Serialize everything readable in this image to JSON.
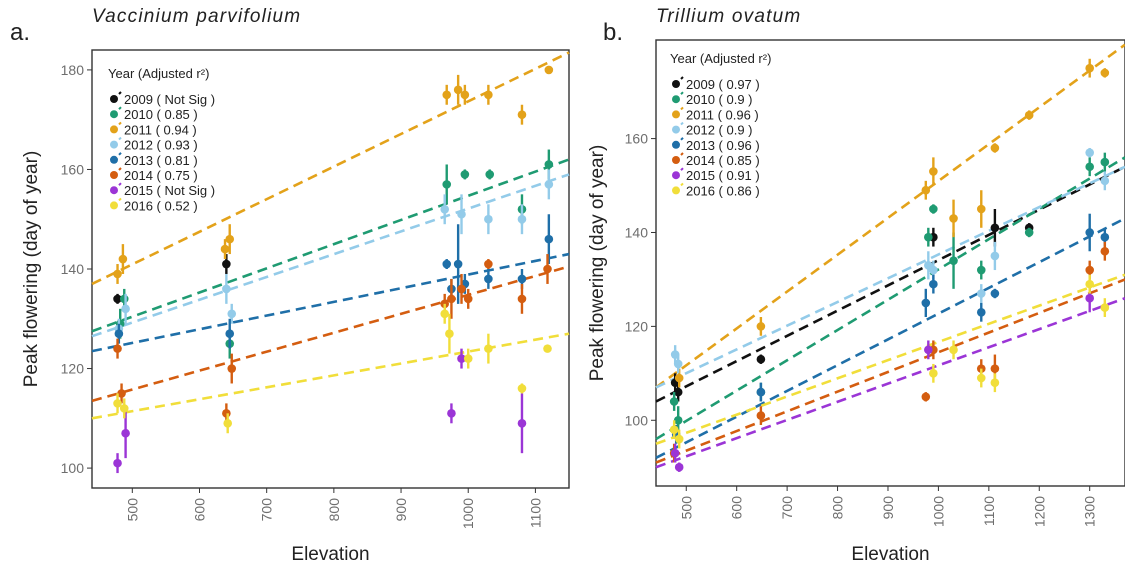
{
  "panels": [
    {
      "letter": "a.",
      "species": "Vaccinium parvifolium"
    },
    {
      "letter": "b.",
      "species": "Trillium ovatum"
    }
  ],
  "colors": {
    "2009": "#111111",
    "2010": "#1f9b72",
    "2011": "#e3a21a",
    "2012": "#93cbe9",
    "2013": "#1f6fa8",
    "2014": "#d45d10",
    "2015": "#9b35d6",
    "2016": "#f1de3a",
    "axis": "#333333",
    "tick": "#6e6e6e"
  },
  "chart_data": [
    {
      "type": "scatter",
      "title": "Vaccinium parvifolium",
      "xlabel": "Elevation",
      "ylabel": "Peak flowering (day of year)",
      "xlim": [
        440,
        1150
      ],
      "ylim": [
        96,
        184
      ],
      "xticks": [
        500,
        600,
        700,
        800,
        900,
        1000,
        1100
      ],
      "yticks": [
        100,
        120,
        140,
        160,
        180
      ],
      "legend": {
        "title": "Year (Adjusted r²)",
        "position": "top-left"
      },
      "series": [
        {
          "year": "2009",
          "label": "2009 ( Not Sig )",
          "fit": null,
          "points": [
            {
              "x": 478,
              "y": 134,
              "e": 1
            },
            {
              "x": 640,
              "y": 141,
              "e": 2
            }
          ]
        },
        {
          "year": "2010",
          "label": "2010 ( 0.85 )",
          "fit": [
            [
              440,
              127.5
            ],
            [
              1150,
              162
            ]
          ],
          "points": [
            {
              "x": 482,
              "y": 129,
              "e": 3
            },
            {
              "x": 488,
              "y": 134,
              "e": 2
            },
            {
              "x": 645,
              "y": 125,
              "e": 3
            },
            {
              "x": 968,
              "y": 157,
              "e": 4
            },
            {
              "x": 995,
              "y": 159,
              "e": 1
            },
            {
              "x": 1032,
              "y": 159,
              "e": 1
            },
            {
              "x": 1080,
              "y": 152,
              "e": 3
            },
            {
              "x": 1120,
              "y": 161,
              "e": 3
            }
          ]
        },
        {
          "year": "2011",
          "label": "2011 ( 0.94 )",
          "fit": [
            [
              440,
              137
            ],
            [
              1150,
              183.5
            ]
          ],
          "points": [
            {
              "x": 478,
              "y": 139,
              "e": 2
            },
            {
              "x": 486,
              "y": 142,
              "e": 3
            },
            {
              "x": 638,
              "y": 144,
              "e": 2
            },
            {
              "x": 645,
              "y": 146,
              "e": 3
            },
            {
              "x": 968,
              "y": 175,
              "e": 2
            },
            {
              "x": 985,
              "y": 176,
              "e": 3
            },
            {
              "x": 995,
              "y": 175,
              "e": 2
            },
            {
              "x": 1030,
              "y": 175,
              "e": 2
            },
            {
              "x": 1080,
              "y": 171,
              "e": 2
            },
            {
              "x": 1120,
              "y": 180,
              "e": 0.5
            }
          ]
        },
        {
          "year": "2012",
          "label": "2012 ( 0.93 )",
          "fit": [
            [
              440,
              126.5
            ],
            [
              1150,
              159
            ]
          ],
          "points": [
            {
              "x": 480,
              "y": 128,
              "e": 2
            },
            {
              "x": 490,
              "y": 132,
              "e": 3
            },
            {
              "x": 640,
              "y": 136,
              "e": 3
            },
            {
              "x": 648,
              "y": 131,
              "e": 2
            },
            {
              "x": 965,
              "y": 152,
              "e": 3
            },
            {
              "x": 990,
              "y": 151,
              "e": 4
            },
            {
              "x": 1030,
              "y": 150,
              "e": 3
            },
            {
              "x": 1080,
              "y": 150,
              "e": 3
            },
            {
              "x": 1120,
              "y": 157,
              "e": 3
            }
          ]
        },
        {
          "year": "2013",
          "label": "2013 ( 0.81 )",
          "fit": [
            [
              440,
              123.5
            ],
            [
              1150,
              143
            ]
          ],
          "points": [
            {
              "x": 480,
              "y": 127,
              "e": 2
            },
            {
              "x": 645,
              "y": 127,
              "e": 3
            },
            {
              "x": 968,
              "y": 141,
              "e": 1
            },
            {
              "x": 975,
              "y": 136,
              "e": 2
            },
            {
              "x": 985,
              "y": 141,
              "e": 8
            },
            {
              "x": 995,
              "y": 137,
              "e": 2
            },
            {
              "x": 1030,
              "y": 138,
              "e": 2
            },
            {
              "x": 1080,
              "y": 138,
              "e": 2
            },
            {
              "x": 1120,
              "y": 146,
              "e": 5
            }
          ]
        },
        {
          "year": "2014",
          "label": "2014 ( 0.75 )",
          "fit": [
            [
              440,
              113.5
            ],
            [
              1150,
              140.5
            ]
          ],
          "points": [
            {
              "x": 478,
              "y": 124,
              "e": 2
            },
            {
              "x": 484,
              "y": 115,
              "e": 2
            },
            {
              "x": 640,
              "y": 111,
              "e": 2
            },
            {
              "x": 648,
              "y": 120,
              "e": 3
            },
            {
              "x": 965,
              "y": 133,
              "e": 2
            },
            {
              "x": 975,
              "y": 134,
              "e": 4
            },
            {
              "x": 990,
              "y": 136,
              "e": 3
            },
            {
              "x": 1000,
              "y": 134,
              "e": 2
            },
            {
              "x": 1030,
              "y": 141,
              "e": 1
            },
            {
              "x": 1080,
              "y": 134,
              "e": 3
            },
            {
              "x": 1118,
              "y": 140,
              "e": 3
            }
          ]
        },
        {
          "year": "2015",
          "label": "2015 ( Not Sig )",
          "fit": null,
          "points": [
            {
              "x": 478,
              "y": 101,
              "e": 2
            },
            {
              "x": 490,
              "y": 107,
              "e": 5
            },
            {
              "x": 975,
              "y": 111,
              "e": 2
            },
            {
              "x": 990,
              "y": 122,
              "e": 2
            },
            {
              "x": 1080,
              "y": 109,
              "e": 6
            }
          ]
        },
        {
          "year": "2016",
          "label": "2016 ( 0.52 )",
          "fit": [
            [
              440,
              110
            ],
            [
              1150,
              127
            ]
          ],
          "points": [
            {
              "x": 478,
              "y": 113,
              "e": 2
            },
            {
              "x": 488,
              "y": 112,
              "e": 2
            },
            {
              "x": 642,
              "y": 109,
              "e": 2
            },
            {
              "x": 965,
              "y": 131,
              "e": 2
            },
            {
              "x": 972,
              "y": 127,
              "e": 4
            },
            {
              "x": 1000,
              "y": 122,
              "e": 2
            },
            {
              "x": 1030,
              "y": 124,
              "e": 3
            },
            {
              "x": 1080,
              "y": 116,
              "e": 1
            },
            {
              "x": 1118,
              "y": 124,
              "e": 0.5
            }
          ]
        }
      ]
    },
    {
      "type": "scatter",
      "title": "Trillium ovatum",
      "xlabel": "Elevation",
      "ylabel": "Peak flowering (day of year)",
      "xlim": [
        440,
        1370
      ],
      "ylim": [
        86,
        181
      ],
      "xticks": [
        500,
        600,
        700,
        800,
        900,
        1000,
        1100,
        1200,
        1300
      ],
      "yticks": [
        100,
        120,
        140,
        160
      ],
      "legend": {
        "title": "Year (Adjusted r²)",
        "position": "top-left"
      },
      "series": [
        {
          "year": "2009",
          "label": "2009 ( 0.97 )",
          "fit": [
            [
              440,
              104
            ],
            [
              1370,
              154
            ]
          ],
          "points": [
            {
              "x": 478,
              "y": 108,
              "e": 2
            },
            {
              "x": 484,
              "y": 106,
              "e": 2
            },
            {
              "x": 648,
              "y": 113,
              "e": 1
            },
            {
              "x": 990,
              "y": 139,
              "e": 2
            },
            {
              "x": 1112,
              "y": 141,
              "e": 4
            },
            {
              "x": 1180,
              "y": 141,
              "e": 1
            }
          ]
        },
        {
          "year": "2010",
          "label": "2010 ( 0.9 )",
          "fit": [
            [
              440,
              96
            ],
            [
              1370,
              156
            ]
          ],
          "points": [
            {
              "x": 476,
              "y": 104,
              "e": 2
            },
            {
              "x": 484,
              "y": 100,
              "e": 3
            },
            {
              "x": 648,
              "y": 106,
              "e": 2
            },
            {
              "x": 980,
              "y": 139,
              "e": 2
            },
            {
              "x": 990,
              "y": 145,
              "e": 1
            },
            {
              "x": 1030,
              "y": 134,
              "e": 6
            },
            {
              "x": 1085,
              "y": 132,
              "e": 2
            },
            {
              "x": 1180,
              "y": 140,
              "e": 1
            },
            {
              "x": 1300,
              "y": 154,
              "e": 2
            },
            {
              "x": 1330,
              "y": 155,
              "e": 2
            }
          ]
        },
        {
          "year": "2011",
          "label": "2011 ( 0.96 )",
          "fit": [
            [
              440,
              107
            ],
            [
              1370,
              180
            ]
          ],
          "points": [
            {
              "x": 486,
              "y": 109,
              "e": 2
            },
            {
              "x": 648,
              "y": 120,
              "e": 2
            },
            {
              "x": 975,
              "y": 149,
              "e": 2
            },
            {
              "x": 990,
              "y": 153,
              "e": 3
            },
            {
              "x": 1030,
              "y": 143,
              "e": 4
            },
            {
              "x": 1085,
              "y": 145,
              "e": 4
            },
            {
              "x": 1112,
              "y": 158,
              "e": 1
            },
            {
              "x": 1180,
              "y": 165,
              "e": 1
            },
            {
              "x": 1300,
              "y": 175,
              "e": 2
            },
            {
              "x": 1330,
              "y": 174,
              "e": 1
            }
          ]
        },
        {
          "year": "2012",
          "label": "2012 ( 0.9 )",
          "fit": [
            [
              440,
              107
            ],
            [
              1370,
              154
            ]
          ],
          "points": [
            {
              "x": 478,
              "y": 114,
              "e": 2
            },
            {
              "x": 484,
              "y": 112,
              "e": 2
            },
            {
              "x": 980,
              "y": 133,
              "e": 3
            },
            {
              "x": 990,
              "y": 132,
              "e": 2
            },
            {
              "x": 1085,
              "y": 127,
              "e": 2
            },
            {
              "x": 1112,
              "y": 135,
              "e": 3
            },
            {
              "x": 1300,
              "y": 157,
              "e": 1
            },
            {
              "x": 1330,
              "y": 151,
              "e": 2
            }
          ]
        },
        {
          "year": "2013",
          "label": "2013 ( 0.96 )",
          "fit": [
            [
              440,
              92
            ],
            [
              1370,
              143
            ]
          ],
          "points": [
            {
              "x": 480,
              "y": 97,
              "e": 2
            },
            {
              "x": 648,
              "y": 106,
              "e": 2
            },
            {
              "x": 975,
              "y": 125,
              "e": 3
            },
            {
              "x": 990,
              "y": 129,
              "e": 2
            },
            {
              "x": 1085,
              "y": 123,
              "e": 2
            },
            {
              "x": 1112,
              "y": 127,
              "e": 1
            },
            {
              "x": 1300,
              "y": 140,
              "e": 4
            },
            {
              "x": 1330,
              "y": 139,
              "e": 2
            }
          ]
        },
        {
          "year": "2014",
          "label": "2014 ( 0.85 )",
          "fit": [
            [
              440,
              91
            ],
            [
              1370,
              130
            ]
          ],
          "points": [
            {
              "x": 476,
              "y": 93,
              "e": 2
            },
            {
              "x": 648,
              "y": 101,
              "e": 2
            },
            {
              "x": 975,
              "y": 105,
              "e": 1
            },
            {
              "x": 990,
              "y": 115,
              "e": 2
            },
            {
              "x": 1085,
              "y": 111,
              "e": 2
            },
            {
              "x": 1112,
              "y": 111,
              "e": 3
            },
            {
              "x": 1300,
              "y": 132,
              "e": 2
            },
            {
              "x": 1330,
              "y": 136,
              "e": 2
            }
          ]
        },
        {
          "year": "2015",
          "label": "2015 ( 0.91 )",
          "fit": [
            [
              440,
              90
            ],
            [
              1370,
              126
            ]
          ],
          "points": [
            {
              "x": 478,
              "y": 93,
              "e": 2
            },
            {
              "x": 486,
              "y": 90,
              "e": 1
            },
            {
              "x": 980,
              "y": 115,
              "e": 2
            },
            {
              "x": 1300,
              "y": 126,
              "e": 3
            }
          ]
        },
        {
          "year": "2016",
          "label": "2016 ( 0.86 )",
          "fit": [
            [
              440,
              95
            ],
            [
              1370,
              131
            ]
          ],
          "points": [
            {
              "x": 476,
              "y": 98,
              "e": 2
            },
            {
              "x": 486,
              "y": 96,
              "e": 2
            },
            {
              "x": 990,
              "y": 110,
              "e": 2
            },
            {
              "x": 1030,
              "y": 115,
              "e": 2
            },
            {
              "x": 1085,
              "y": 109,
              "e": 2
            },
            {
              "x": 1112,
              "y": 108,
              "e": 2
            },
            {
              "x": 1300,
              "y": 129,
              "e": 2
            },
            {
              "x": 1330,
              "y": 124,
              "e": 2
            }
          ]
        }
      ]
    }
  ]
}
